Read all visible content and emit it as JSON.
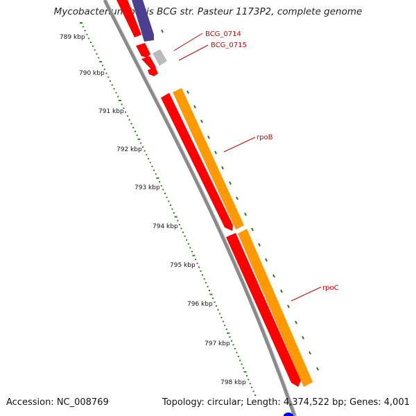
{
  "title": "Mycobacterium bovis BCG str. Pasteur 1173P2, complete genome",
  "accession": "Accession: NC_008769",
  "topology": "Topology: circular; Length: 4,374,522 bp; Genes: 4,001",
  "ruler": {
    "unit": "kbp",
    "ticks": [
      "789 kbp",
      "790 kbp",
      "791 kbp",
      "792 kbp",
      "793 kbp",
      "794 kbp",
      "795 kbp",
      "796 kbp",
      "797 kbp",
      "798 kbp"
    ]
  },
  "genes": [
    {
      "label": "BCG_0714",
      "color": "#ff0000"
    },
    {
      "label": "BCG_0715",
      "color": "#ff0000"
    },
    {
      "label": "rpoB",
      "color": "#ff0000"
    },
    {
      "label": "rpoC",
      "color": "#ff0000"
    }
  ],
  "colors": {
    "forward_cds": "#ff0000",
    "reverse_strand_feature": "#ff9900",
    "upstream_block": "#4b3f8f",
    "gray_feature": "#bbbbbb",
    "backbone": "#888888",
    "tick": "#2e7d1e",
    "label": "#d10000",
    "bottom_marker": "#0000ee"
  }
}
